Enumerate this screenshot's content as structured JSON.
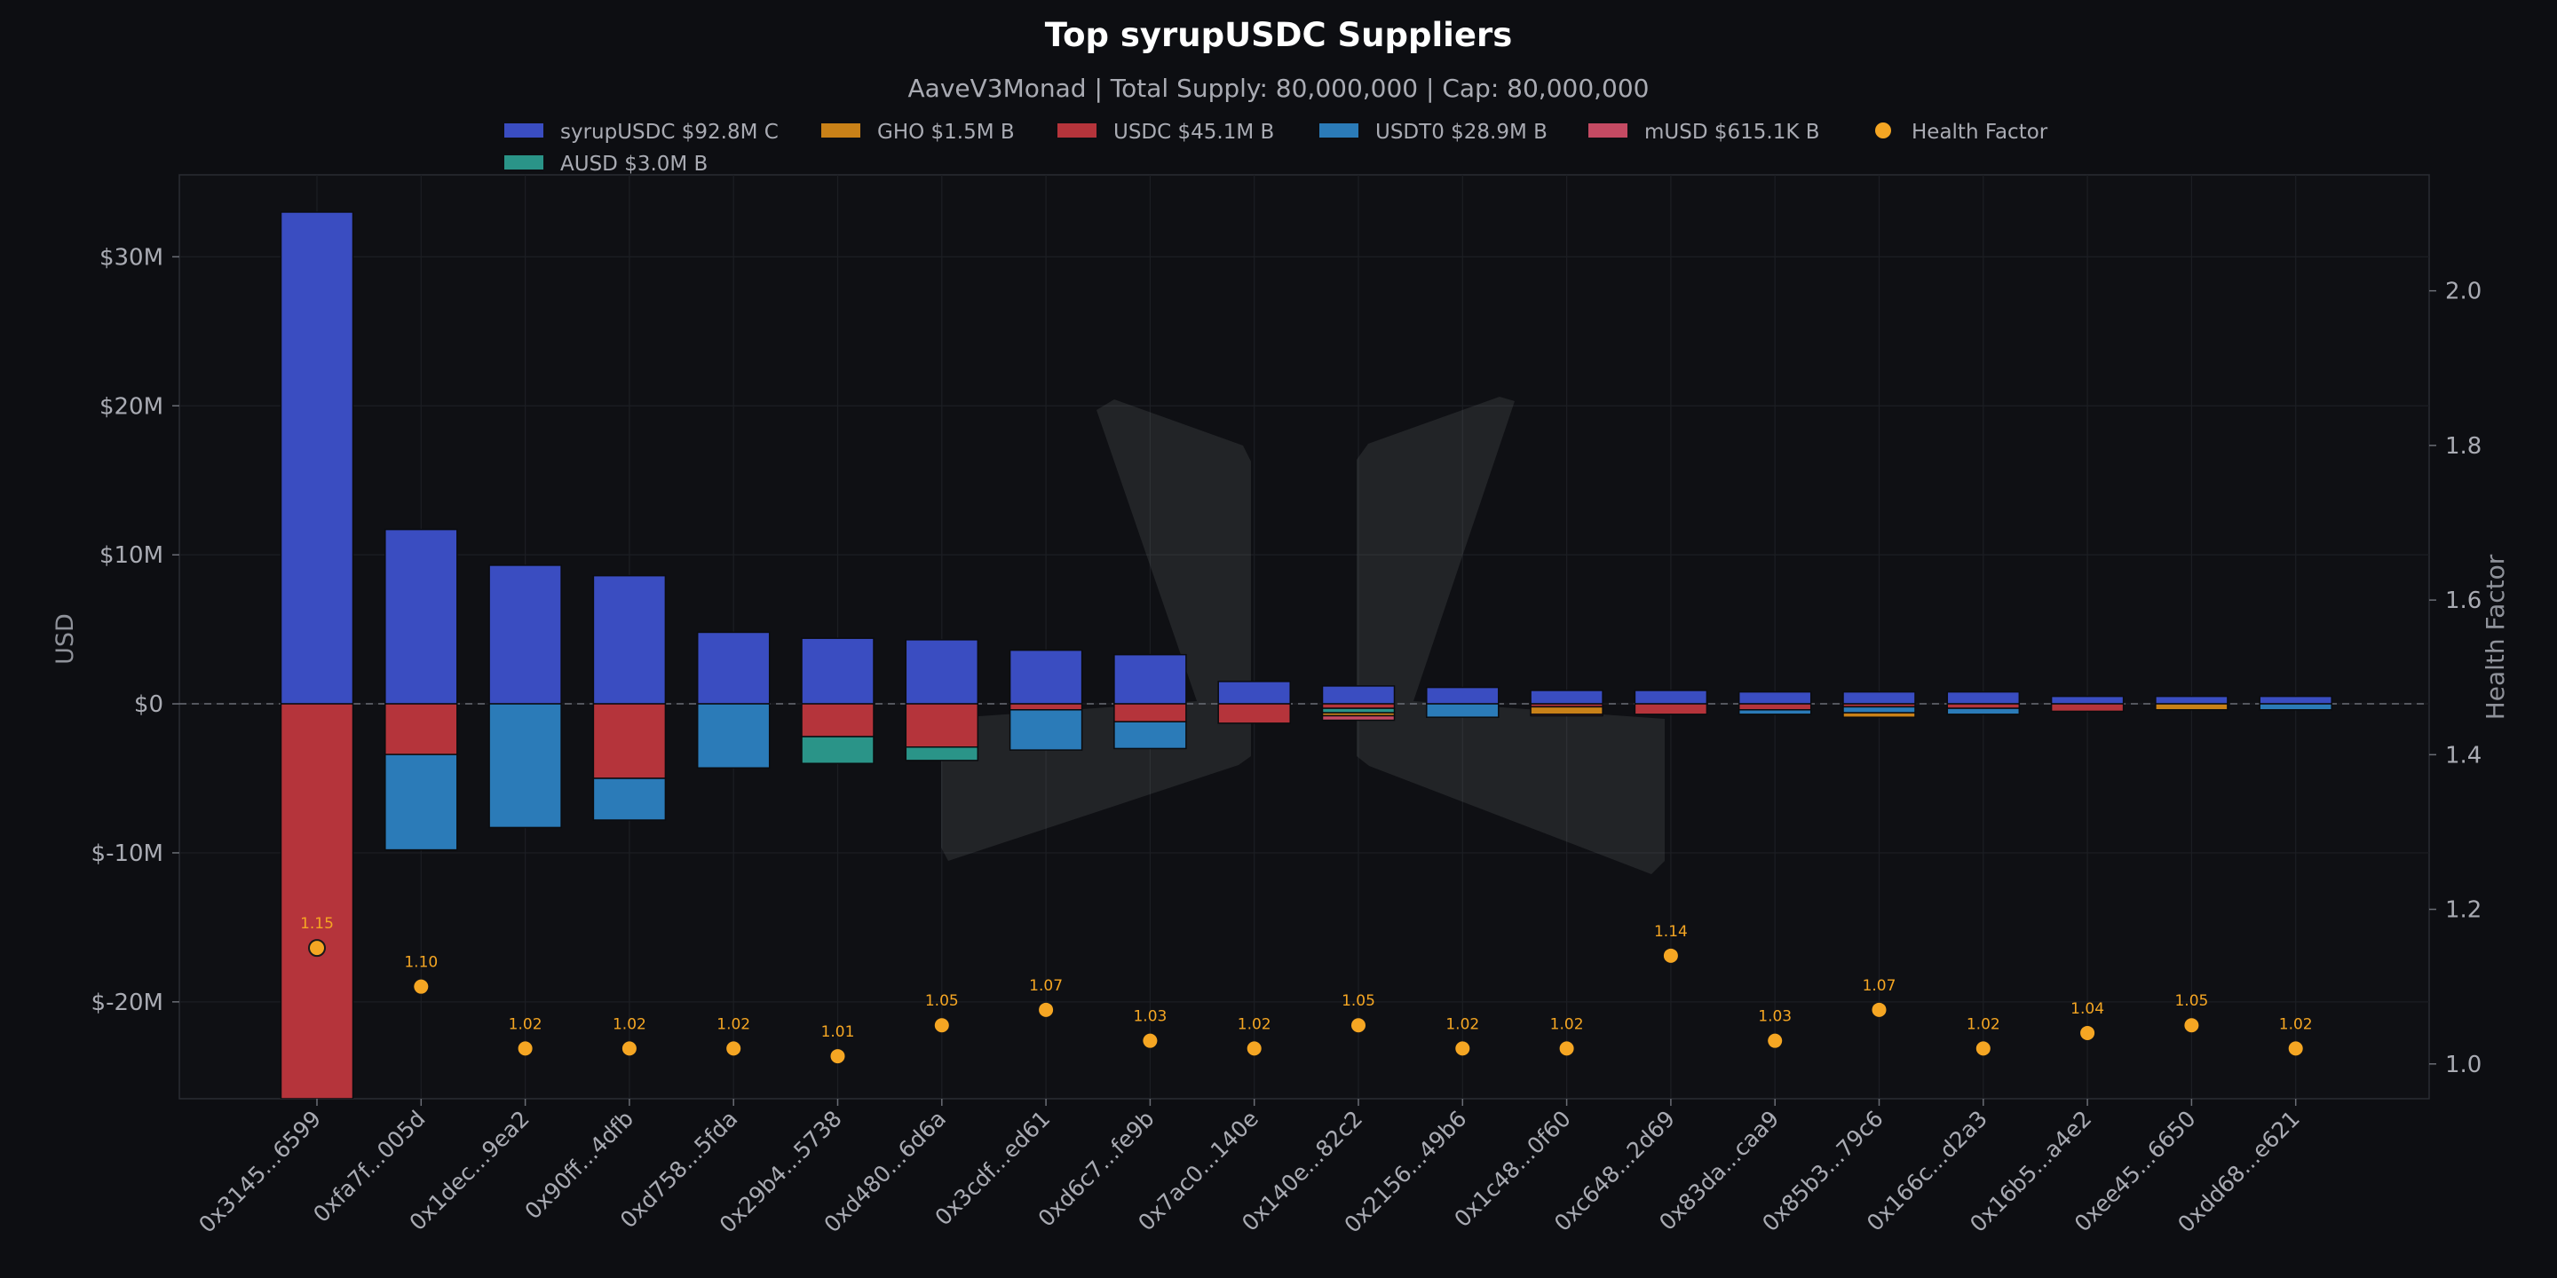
{
  "chart_data": {
    "type": "bar",
    "title": "Top syrupUSDC Suppliers",
    "subtitle": "AaveV3Monad | Total Supply: 80,000,000 | Cap: 80,000,000",
    "ylabel": "USD",
    "y2label": "Health Factor",
    "ylim": [
      -26500000,
      35500000
    ],
    "y2lim": [
      0.955,
      2.15
    ],
    "y_ticks": [
      {
        "value": 30000000,
        "label": "$30M"
      },
      {
        "value": 20000000,
        "label": "$20M"
      },
      {
        "value": 10000000,
        "label": "$10M"
      },
      {
        "value": 0,
        "label": "$0"
      },
      {
        "value": -10000000,
        "label": "$-10M"
      },
      {
        "value": -20000000,
        "label": "$-20M"
      }
    ],
    "y2_ticks": [
      {
        "value": 2.0,
        "label": "2.0"
      },
      {
        "value": 1.8,
        "label": "1.8"
      },
      {
        "value": 1.6,
        "label": "1.6"
      },
      {
        "value": 1.4,
        "label": "1.4"
      },
      {
        "value": 1.2,
        "label": "1.2"
      },
      {
        "value": 1.0,
        "label": "1.0"
      }
    ],
    "grid": true,
    "stacked": true,
    "legend_position": "top",
    "categories": [
      "0x3145...6599",
      "0xfa7f...005d",
      "0x1dec...9ea2",
      "0x90ff...4dfb",
      "0xd758...5fda",
      "0x29b4...5738",
      "0xd480...6d6a",
      "0x3cdf...ed61",
      "0xd6c7...fe9b",
      "0x7ac0...140e",
      "0x140e...82c2",
      "0x2156...49b6",
      "0x1c48...0f60",
      "0xc648...2d69",
      "0x83da...caa9",
      "0x85b3...79c6",
      "0x166c...d2a3",
      "0x16b5...a4e2",
      "0xee45...6650",
      "0xdd68...e621"
    ],
    "series": [
      {
        "name": "syrupUSDC",
        "legend": "syrupUSDC  $92.8M C",
        "color": "#3a4dc1",
        "side": "supply",
        "values": [
          33000000,
          11700000,
          9300000,
          8600000,
          4800000,
          4400000,
          4300000,
          3600000,
          3300000,
          1500000,
          1200000,
          1100000,
          900000,
          900000,
          800000,
          800000,
          800000,
          500000,
          500000,
          500000
        ]
      },
      {
        "name": "USDC",
        "legend": "USDC  $45.1M B",
        "color": "#b5343b",
        "side": "borrow",
        "values": [
          26500000,
          3400000,
          0,
          5000000,
          0,
          2200000,
          2900000,
          400000,
          1200000,
          1300000,
          300000,
          0,
          200000,
          700000,
          400000,
          200000,
          300000,
          500000,
          0,
          0
        ]
      },
      {
        "name": "USDT0",
        "legend": "USDT0  $28.9M B",
        "color": "#2b7bb8",
        "side": "borrow",
        "values": [
          0,
          6400000,
          8300000,
          2800000,
          4300000,
          0,
          0,
          2700000,
          1800000,
          0,
          0,
          900000,
          0,
          0,
          300000,
          400000,
          400000,
          0,
          0,
          400000
        ]
      },
      {
        "name": "AUSD",
        "legend": "AUSD  $3.0M B",
        "color": "#2a9488",
        "side": "borrow",
        "values": [
          0,
          0,
          0,
          0,
          0,
          1800000,
          900000,
          0,
          0,
          0,
          300000,
          0,
          0,
          0,
          0,
          0,
          0,
          0,
          0,
          0
        ]
      },
      {
        "name": "GHO",
        "legend": "GHO  $1.5M B",
        "color": "#c98118",
        "side": "borrow",
        "values": [
          0,
          0,
          0,
          0,
          0,
          0,
          0,
          0,
          0,
          0,
          200000,
          0,
          500000,
          0,
          0,
          300000,
          0,
          0,
          400000,
          0
        ]
      },
      {
        "name": "mUSD",
        "legend": "mUSD  $615.1K B",
        "color": "#c44a63",
        "side": "borrow",
        "values": [
          0,
          0,
          0,
          0,
          0,
          0,
          0,
          0,
          0,
          0,
          300000,
          0,
          100000,
          0,
          0,
          0,
          0,
          0,
          0,
          0
        ]
      }
    ],
    "health_factor": {
      "name": "Health Factor",
      "color": "#f5a623",
      "values": [
        1.15,
        1.1,
        1.02,
        1.02,
        1.02,
        1.01,
        1.05,
        1.07,
        1.03,
        1.02,
        1.05,
        1.02,
        1.02,
        1.14,
        1.03,
        1.07,
        1.02,
        1.04,
        1.05,
        1.02
      ],
      "labels": [
        "1.15",
        "1.10",
        "1.02",
        "1.02",
        "1.02",
        "1.01",
        "1.05",
        "1.07",
        "1.03",
        "1.02",
        "1.05",
        "1.02",
        "1.02",
        "1.14",
        "1.03",
        "1.07",
        "1.02",
        "1.04",
        "1.05",
        "1.02"
      ]
    },
    "legend_rows": [
      [
        "syrupUSDC",
        "GHO",
        "USDC",
        "USDT0",
        "mUSD",
        "Health Factor"
      ],
      [
        "AUSD"
      ]
    ],
    "watermark": "M-logo"
  }
}
